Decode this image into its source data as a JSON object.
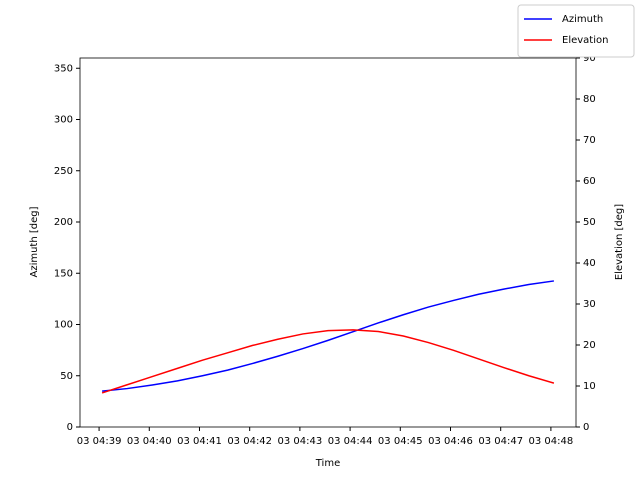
{
  "chart_data": {
    "type": "line",
    "x_label": "Time",
    "y_label": "Azimuth [deg]",
    "y2_label": "Elevation [deg]",
    "x": [
      279.06,
      279.56,
      280.06,
      280.56,
      281.06,
      281.56,
      282.06,
      282.56,
      283.06,
      283.56,
      284.06,
      284.56,
      285.06,
      285.56,
      286.06,
      286.56,
      287.06,
      287.56,
      288.06
    ],
    "xlim": [
      278.62,
      288.5
    ],
    "xticks": [
      {
        "value": 279,
        "label": "03 04:39"
      },
      {
        "value": 280,
        "label": "03 04:40"
      },
      {
        "value": 281,
        "label": "03 04:41"
      },
      {
        "value": 282,
        "label": "03 04:42"
      },
      {
        "value": 283,
        "label": "03 04:43"
      },
      {
        "value": 284,
        "label": "03 04:44"
      },
      {
        "value": 285,
        "label": "03 04:45"
      },
      {
        "value": 286,
        "label": "03 04:46"
      },
      {
        "value": 287,
        "label": "03 04:47"
      },
      {
        "value": 288,
        "label": "03 04:48"
      }
    ],
    "ylim": [
      0,
      360
    ],
    "yticks": [
      0,
      50,
      100,
      150,
      200,
      250,
      300,
      350
    ],
    "y2lim": [
      0,
      90
    ],
    "y2ticks": [
      0,
      10,
      20,
      30,
      40,
      50,
      60,
      70,
      80,
      90
    ],
    "legend": "upper right",
    "series": [
      {
        "name": "Azimuth",
        "color": "#0000ff",
        "values": [
          35,
          37.5,
          41,
          45,
          50,
          55.5,
          62,
          69,
          76.5,
          84.5,
          93,
          101.5,
          109.5,
          117,
          123.5,
          129.5,
          134.5,
          139,
          142.5
        ]
      },
      {
        "name": "Elevation",
        "color": "#ff0000",
        "axis": "y2",
        "values": [
          8.3,
          10.3,
          12.3,
          14.3,
          16.3,
          18.1,
          19.9,
          21.4,
          22.7,
          23.5,
          23.7,
          23.3,
          22.2,
          20.6,
          18.7,
          16.6,
          14.5,
          12.5,
          10.7
        ]
      }
    ]
  }
}
